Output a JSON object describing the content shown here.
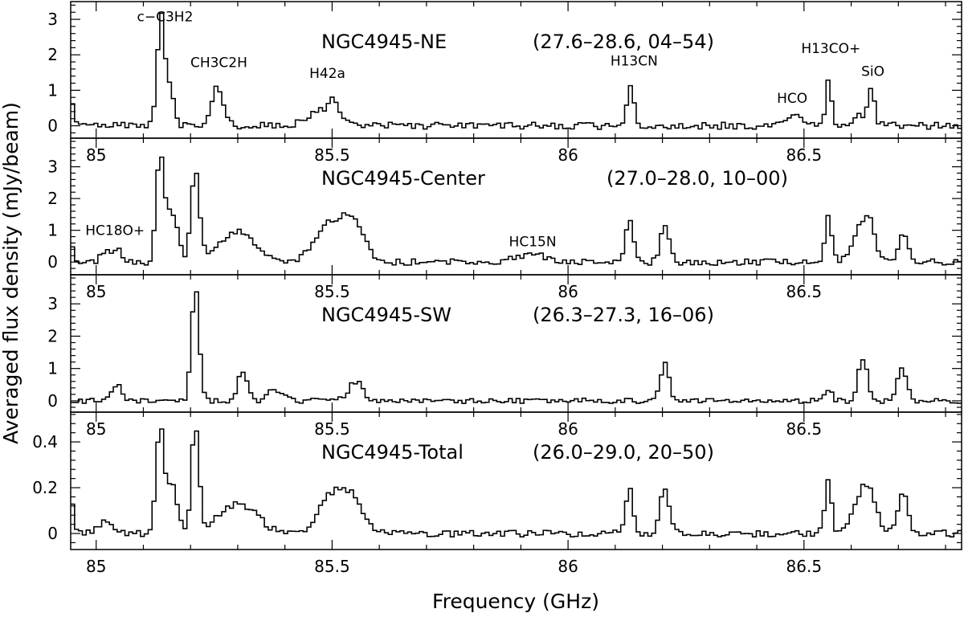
{
  "chart_data": {
    "type": "line",
    "render": "step",
    "xlabel": "Frequency (GHz)",
    "ylabel": "Averaged flux density (mJy/beam)",
    "xlim": [
      84.946,
      86.834
    ],
    "xticks": [
      85,
      85.5,
      86,
      86.5
    ],
    "xtick_labels": [
      "85",
      "85.5",
      "86",
      "86.5"
    ],
    "line_color": "#000000",
    "panels": [
      {
        "name": "NGC4945-NE",
        "region": "(27.6–28.6, 04–54)",
        "ylim": [
          -0.35,
          3.5
        ],
        "yticks": [
          0,
          1,
          2,
          3
        ],
        "show_xtick_labels": false,
        "line_labels": [
          {
            "text": "c−C3H2",
            "x": 85.146,
            "y": 2.95
          },
          {
            "text": "CH3C2H",
            "x": 85.26,
            "y": 1.65
          },
          {
            "text": "H42a",
            "x": 85.49,
            "y": 1.35
          },
          {
            "text": "H13CN",
            "x": 86.14,
            "y": 1.7
          },
          {
            "text": "HCO",
            "x": 86.475,
            "y": 0.65
          },
          {
            "text": "H13CO+",
            "x": 86.557,
            "y": 2.05
          },
          {
            "text": "SiO",
            "x": 86.646,
            "y": 1.4
          }
        ],
        "features": [
          {
            "x": 84.95,
            "h": 0.6,
            "w": 0.004
          },
          {
            "x": 85.138,
            "h": 3.1,
            "w": 0.008
          },
          {
            "x": 85.158,
            "h": 0.9,
            "w": 0.008
          },
          {
            "x": 85.258,
            "h": 1.1,
            "w": 0.012
          },
          {
            "x": 85.48,
            "h": 0.45,
            "w": 0.03
          },
          {
            "x": 85.503,
            "h": 0.45,
            "w": 0.01
          },
          {
            "x": 86.132,
            "h": 1.2,
            "w": 0.007
          },
          {
            "x": 86.475,
            "h": 0.3,
            "w": 0.02
          },
          {
            "x": 86.552,
            "h": 1.35,
            "w": 0.006
          },
          {
            "x": 86.622,
            "h": 0.3,
            "w": 0.015
          },
          {
            "x": 86.643,
            "h": 1.0,
            "w": 0.007
          }
        ],
        "noise": 0.1,
        "seed": 3
      },
      {
        "name": "NGC4945-Center",
        "region": "(27.0–28.0, 10–00)",
        "ylim": [
          -0.4,
          3.9
        ],
        "yticks": [
          0,
          1,
          2,
          3
        ],
        "show_xtick_labels": true,
        "line_labels": [
          {
            "text": "HC18O+",
            "x": 85.04,
            "y": 0.85
          },
          {
            "text": "HC15N",
            "x": 85.925,
            "y": 0.5
          }
        ],
        "features": [
          {
            "x": 84.95,
            "h": 0.4,
            "w": 0.004
          },
          {
            "x": 85.02,
            "h": 0.35,
            "w": 0.01
          },
          {
            "x": 85.045,
            "h": 0.4,
            "w": 0.01
          },
          {
            "x": 85.135,
            "h": 3.3,
            "w": 0.008
          },
          {
            "x": 85.16,
            "h": 1.6,
            "w": 0.012
          },
          {
            "x": 85.21,
            "h": 2.8,
            "w": 0.009
          },
          {
            "x": 85.3,
            "h": 0.95,
            "w": 0.04
          },
          {
            "x": 85.505,
            "h": 1.3,
            "w": 0.035
          },
          {
            "x": 85.55,
            "h": 0.8,
            "w": 0.02
          },
          {
            "x": 85.92,
            "h": 0.25,
            "w": 0.03
          },
          {
            "x": 86.13,
            "h": 1.45,
            "w": 0.008
          },
          {
            "x": 86.205,
            "h": 1.25,
            "w": 0.009
          },
          {
            "x": 86.552,
            "h": 1.45,
            "w": 0.007
          },
          {
            "x": 86.625,
            "h": 1.2,
            "w": 0.02
          },
          {
            "x": 86.642,
            "h": 0.5,
            "w": 0.008
          },
          {
            "x": 86.71,
            "h": 0.95,
            "w": 0.01
          }
        ],
        "noise": 0.1,
        "seed": 7
      },
      {
        "name": "NGC4945-SW",
        "region": "(26.3–27.3, 16–06)",
        "ylim": [
          -0.35,
          3.9
        ],
        "yticks": [
          0,
          1,
          2,
          3
        ],
        "show_xtick_labels": true,
        "line_labels": [],
        "features": [
          {
            "x": 85.045,
            "h": 0.45,
            "w": 0.01
          },
          {
            "x": 85.21,
            "h": 3.5,
            "w": 0.008
          },
          {
            "x": 85.31,
            "h": 0.9,
            "w": 0.01
          },
          {
            "x": 85.38,
            "h": 0.35,
            "w": 0.015
          },
          {
            "x": 85.55,
            "h": 0.6,
            "w": 0.015
          },
          {
            "x": 86.205,
            "h": 1.15,
            "w": 0.009
          },
          {
            "x": 86.552,
            "h": 0.4,
            "w": 0.006
          },
          {
            "x": 86.625,
            "h": 1.3,
            "w": 0.01
          },
          {
            "x": 86.708,
            "h": 1.05,
            "w": 0.01
          }
        ],
        "noise": 0.08,
        "seed": 11
      },
      {
        "name": "NGC4945-Total",
        "region": "(26.0–29.0, 20–50)",
        "ylim": [
          -0.07,
          0.53
        ],
        "yticks": [
          0,
          0.2,
          0.4
        ],
        "show_xtick_labels": true,
        "line_labels": [],
        "features": [
          {
            "x": 84.95,
            "h": 0.12,
            "w": 0.004
          },
          {
            "x": 85.02,
            "h": 0.05,
            "w": 0.015
          },
          {
            "x": 85.135,
            "h": 0.46,
            "w": 0.008
          },
          {
            "x": 85.16,
            "h": 0.22,
            "w": 0.012
          },
          {
            "x": 85.21,
            "h": 0.46,
            "w": 0.008
          },
          {
            "x": 85.3,
            "h": 0.13,
            "w": 0.04
          },
          {
            "x": 85.505,
            "h": 0.18,
            "w": 0.03
          },
          {
            "x": 85.55,
            "h": 0.1,
            "w": 0.02
          },
          {
            "x": 86.13,
            "h": 0.2,
            "w": 0.007
          },
          {
            "x": 86.205,
            "h": 0.2,
            "w": 0.009
          },
          {
            "x": 86.552,
            "h": 0.23,
            "w": 0.007
          },
          {
            "x": 86.63,
            "h": 0.22,
            "w": 0.02
          },
          {
            "x": 86.71,
            "h": 0.18,
            "w": 0.01
          }
        ],
        "noise": 0.015,
        "seed": 19
      }
    ]
  }
}
